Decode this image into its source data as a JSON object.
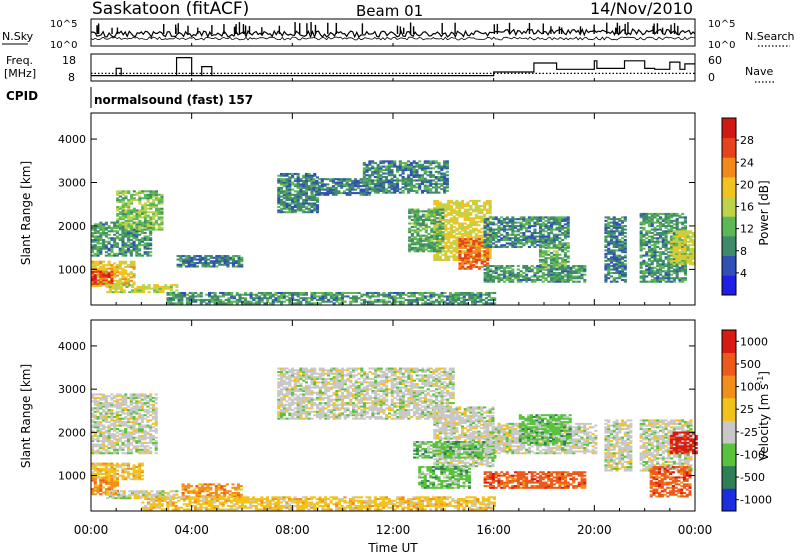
{
  "header": {
    "station": "Saskatoon (fitACF)",
    "beam": "Beam 01",
    "date": "14/Nov/2010"
  },
  "noise_panel": {
    "left_label": "N.Sky",
    "right_label": "N.Search",
    "left_ticks": [
      "10^5",
      "10^0"
    ],
    "right_ticks": [
      "10^5",
      "10^0"
    ]
  },
  "freq_panel": {
    "left_label_line1": "Freq.",
    "left_label_line2": "[MHz]",
    "right_label": "Nave",
    "left_ticks": [
      18,
      8
    ],
    "right_ticks": [
      60,
      0
    ],
    "freq_ylim": [
      8,
      18
    ],
    "nave_ylim": [
      0,
      60
    ],
    "nave_steps": [
      [
        0,
        12
      ],
      [
        4.3,
        12
      ],
      [
        16,
        12
      ],
      [
        16,
        20
      ],
      [
        17.6,
        20
      ],
      [
        17.6,
        40
      ],
      [
        18.5,
        40
      ],
      [
        18.5,
        26
      ],
      [
        20,
        26
      ],
      [
        20,
        45
      ],
      [
        20.1,
        45
      ],
      [
        20.1,
        28
      ],
      [
        21.2,
        28
      ],
      [
        21.2,
        45
      ],
      [
        22,
        45
      ],
      [
        22,
        28
      ],
      [
        22.4,
        28
      ],
      [
        22.4,
        26
      ],
      [
        23,
        26
      ],
      [
        23,
        42
      ],
      [
        23.4,
        42
      ],
      [
        23.4,
        26
      ],
      [
        23.6,
        26
      ],
      [
        23.6,
        38
      ],
      [
        24,
        38
      ]
    ]
  },
  "cpid": {
    "label": "CPID",
    "program": "normalsound (fast) 157"
  },
  "x_axis": {
    "title": "Time UT",
    "range_hours": [
      0,
      24
    ],
    "tick_labels": [
      "00:00",
      "04:00",
      "08:00",
      "12:00",
      "16:00",
      "20:00",
      "00:00"
    ],
    "tick_hours": [
      0,
      4,
      8,
      12,
      16,
      20,
      24
    ]
  },
  "chart_data": [
    {
      "type": "heatmap",
      "title": "",
      "xlabel": "Time UT",
      "ylabel": "Slant Range [km]",
      "xlim": [
        0,
        24
      ],
      "ylim": [
        180,
        4600
      ],
      "y_ticks": [
        1000,
        2000,
        3000,
        4000
      ],
      "colorbar": {
        "label": "Power [dB]",
        "range": [
          0,
          32
        ],
        "ticks": [
          "28",
          "24",
          "20",
          "16",
          "12",
          "8",
          "4"
        ],
        "colors": [
          "#1e1ee6",
          "#3050b8",
          "#3f8a6a",
          "#5cb854",
          "#bcd34a",
          "#f2c31e",
          "#f18a1a",
          "#e5431e",
          "#d21a14"
        ]
      },
      "regions": [
        {
          "t": [
            0.0,
            1.7
          ],
          "r": [
            600,
            1200
          ],
          "v": 20
        },
        {
          "t": [
            0.0,
            0.8
          ],
          "r": [
            650,
            950
          ],
          "v": 28
        },
        {
          "t": [
            0.0,
            2.4
          ],
          "r": [
            1300,
            2100
          ],
          "v": 9
        },
        {
          "t": [
            1.0,
            2.8
          ],
          "r": [
            1900,
            2800
          ],
          "v": 13
        },
        {
          "t": [
            0.6,
            3.4
          ],
          "r": [
            460,
            660
          ],
          "v": 17
        },
        {
          "t": [
            3.4,
            6.0
          ],
          "r": [
            1050,
            1300
          ],
          "v": 7
        },
        {
          "t": [
            7.4,
            9.0
          ],
          "r": [
            2300,
            3200
          ],
          "v": 8
        },
        {
          "t": [
            8.8,
            11.0
          ],
          "r": [
            2700,
            3100
          ],
          "v": 7
        },
        {
          "t": [
            10.8,
            14.2
          ],
          "r": [
            2750,
            3500
          ],
          "v": 8
        },
        {
          "t": [
            13.6,
            15.8
          ],
          "r": [
            1200,
            2600
          ],
          "v": 18
        },
        {
          "t": [
            14.6,
            15.8
          ],
          "r": [
            1000,
            1700
          ],
          "v": 26
        },
        {
          "t": [
            12.6,
            14.0
          ],
          "r": [
            1400,
            2400
          ],
          "v": 11
        },
        {
          "t": [
            15.6,
            19.0
          ],
          "r": [
            1500,
            2200
          ],
          "v": 8
        },
        {
          "t": [
            15.6,
            19.6
          ],
          "r": [
            700,
            1100
          ],
          "v": 9
        },
        {
          "t": [
            17.8,
            19.0
          ],
          "r": [
            1000,
            1600
          ],
          "v": 11
        },
        {
          "t": [
            20.4,
            21.2
          ],
          "r": [
            700,
            2200
          ],
          "v": 7
        },
        {
          "t": [
            21.8,
            23.6
          ],
          "r": [
            700,
            2300
          ],
          "v": 9
        },
        {
          "t": [
            23.0,
            23.9
          ],
          "r": [
            1100,
            1900
          ],
          "v": 17
        },
        {
          "t": [
            3.0,
            16.0
          ],
          "r": [
            200,
            450
          ],
          "v": 9
        }
      ]
    },
    {
      "type": "heatmap",
      "title": "",
      "xlabel": "Time UT",
      "ylabel": "Slant Range [km]",
      "xlim": [
        0,
        24
      ],
      "ylim": [
        180,
        4600
      ],
      "y_ticks": [
        1000,
        2000,
        3000,
        4000
      ],
      "colorbar": {
        "label": "Velocity [m s-1]",
        "label_main": "Velocity",
        "label_unit": "[m s",
        "label_sup": "-1",
        "label_close": "]",
        "ticks": [
          "1000",
          "500",
          "100",
          "25",
          "-25",
          "-100",
          "-500",
          "-1000"
        ],
        "colors": [
          "#1a2ee0",
          "#2f7f56",
          "#58c23d",
          "#c8c8c8",
          "#f3c21a",
          "#f28e1b",
          "#ec5a1b",
          "#d71a12"
        ]
      },
      "regions": [
        {
          "t": [
            0.0,
            2.0
          ],
          "r": [
            900,
            1300
          ],
          "v": 4
        },
        {
          "t": [
            0.0,
            1.0
          ],
          "r": [
            550,
            950
          ],
          "v": 5
        },
        {
          "t": [
            0.0,
            2.6
          ],
          "r": [
            1500,
            2900
          ],
          "v": 3
        },
        {
          "t": [
            0.6,
            3.4
          ],
          "r": [
            460,
            660
          ],
          "v": 3
        },
        {
          "t": [
            3.6,
            6.0
          ],
          "r": [
            500,
            800
          ],
          "v": 5
        },
        {
          "t": [
            7.4,
            14.4
          ],
          "r": [
            2300,
            3500
          ],
          "v": 3
        },
        {
          "t": [
            13.6,
            16.0
          ],
          "r": [
            1200,
            2600
          ],
          "v": 3
        },
        {
          "t": [
            12.8,
            16.0
          ],
          "r": [
            1400,
            1800
          ],
          "v": 2
        },
        {
          "t": [
            13.0,
            15.0
          ],
          "r": [
            700,
            1200
          ],
          "v": 2
        },
        {
          "t": [
            15.6,
            19.6
          ],
          "r": [
            700,
            1100
          ],
          "v": 6
        },
        {
          "t": [
            15.6,
            20.0
          ],
          "r": [
            1500,
            2200
          ],
          "v": 3
        },
        {
          "t": [
            17.0,
            19.0
          ],
          "r": [
            1700,
            2400
          ],
          "v": 2
        },
        {
          "t": [
            20.4,
            21.4
          ],
          "r": [
            1100,
            2300
          ],
          "v": 3
        },
        {
          "t": [
            21.8,
            23.8
          ],
          "r": [
            1100,
            2300
          ],
          "v": 3
        },
        {
          "t": [
            22.2,
            23.8
          ],
          "r": [
            500,
            1200
          ],
          "v": 6
        },
        {
          "t": [
            23.0,
            24.0
          ],
          "r": [
            1500,
            2000
          ],
          "v": 7
        },
        {
          "t": [
            2.0,
            16.0
          ],
          "r": [
            200,
            500
          ],
          "v": 4
        }
      ]
    }
  ]
}
